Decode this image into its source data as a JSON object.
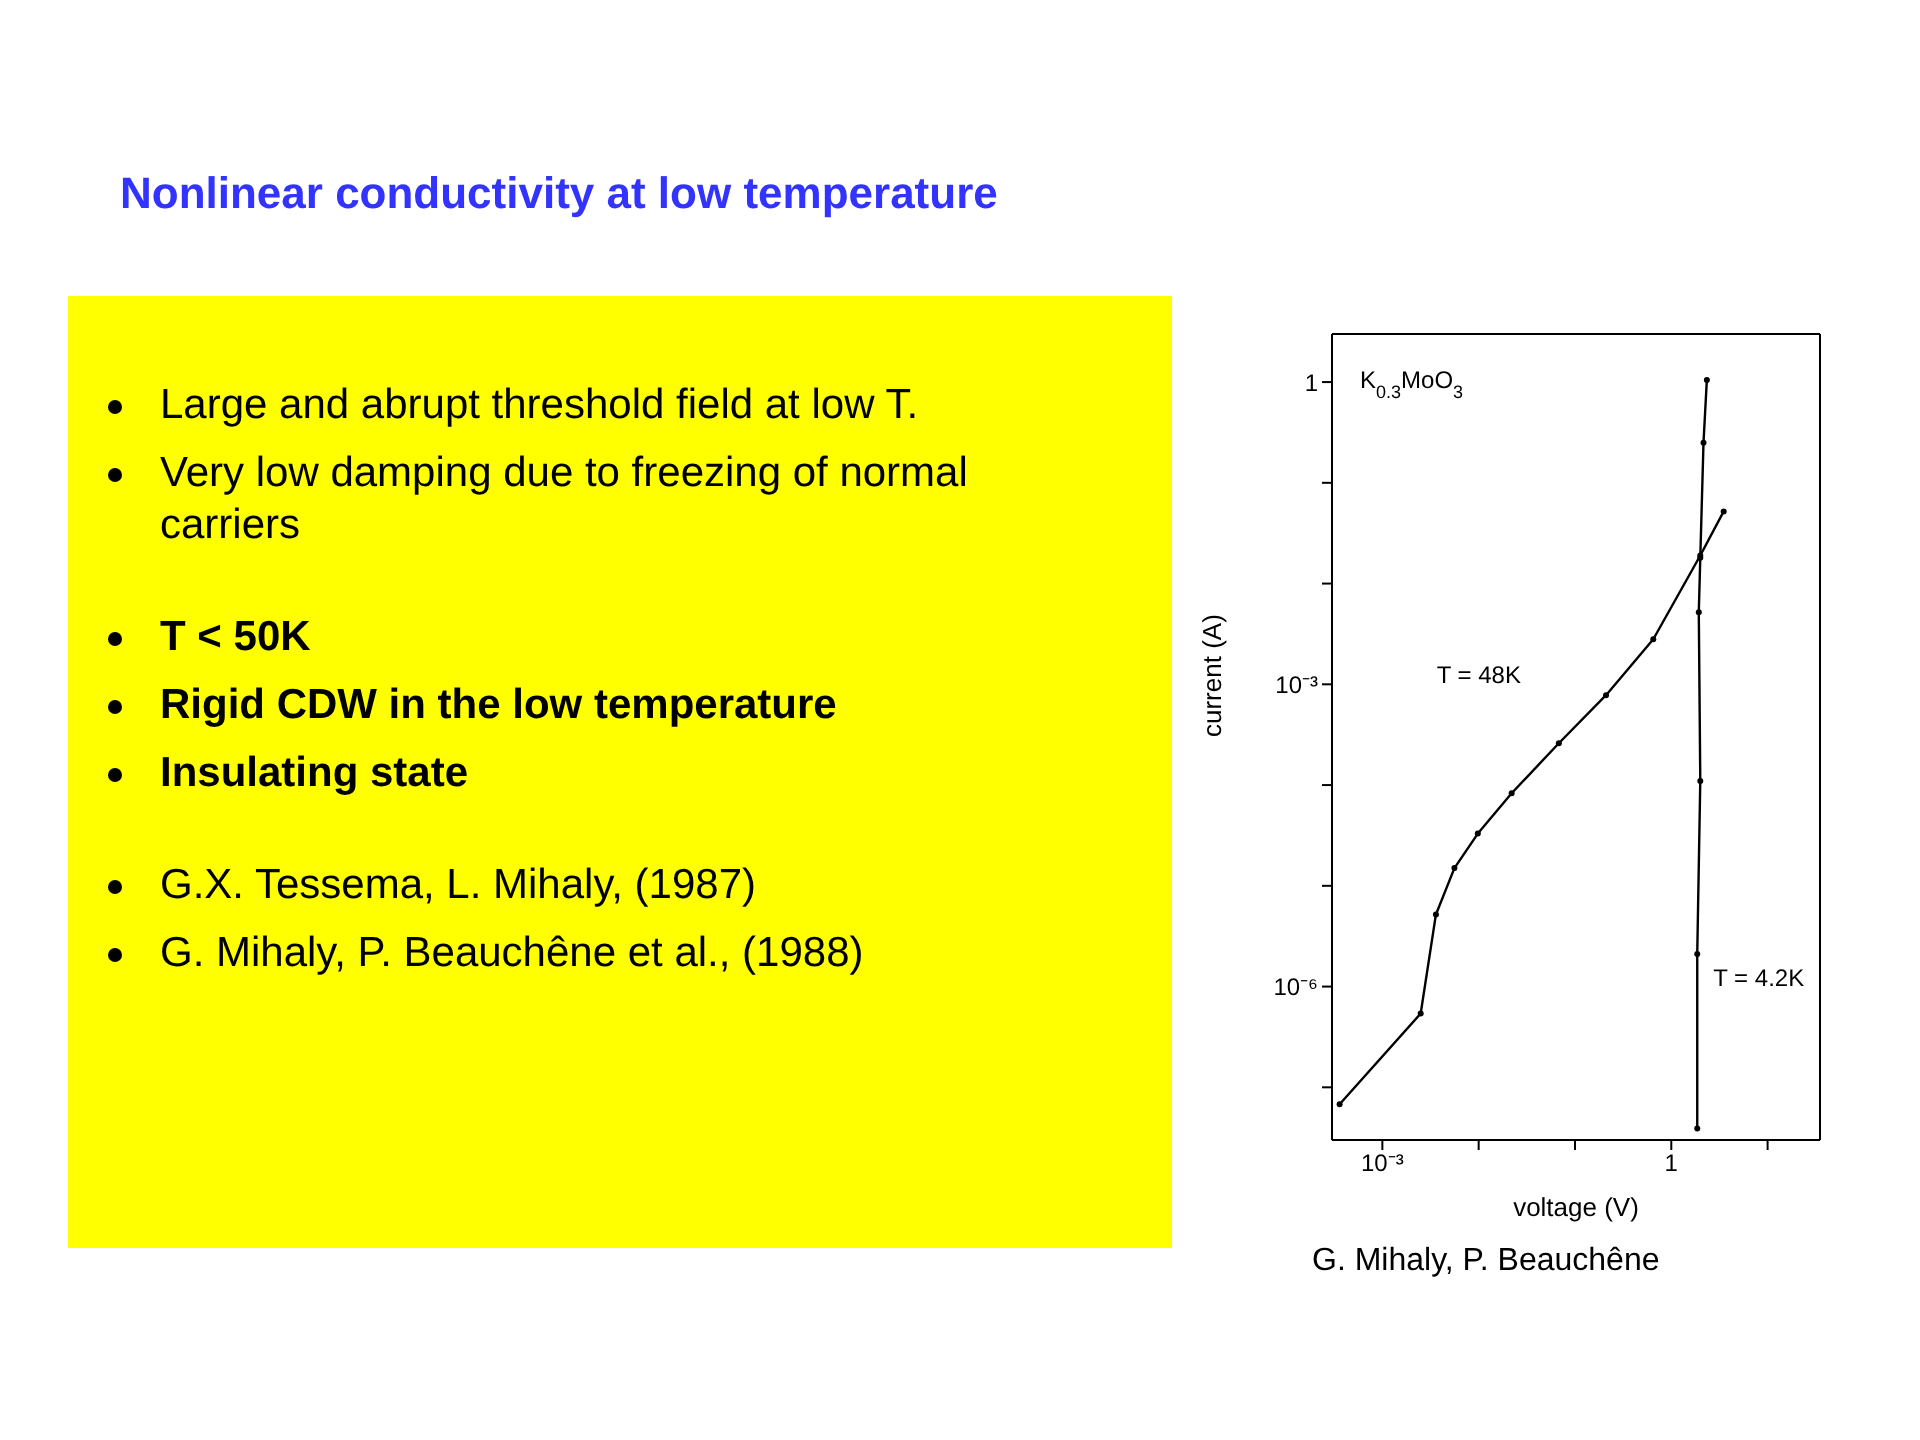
{
  "chart_data": {
    "type": "line",
    "title": "Nonlinear conductivity at low temperature",
    "annotations": [
      "Large and abrupt threshold field at low T.",
      "Very low damping due to freezing of normal carriers",
      "T < 50K",
      "Rigid CDW in the  low temperature",
      "Insulating state",
      "G.X. Tessema, L. Mihaly, (1987)",
      "G. Mihaly, P. Beauchêne et al., (1988)",
      "G. Mihaly, P. Beauchêne",
      "K$_{0.3}$MoO$_{3}$"
    ],
    "xlabel": "voltage (V)",
    "ylabel": "current (A)",
    "log": "xy",
    "grid": false,
    "legend": false,
    "marker": "circle",
    "line_style": "solid",
    "xlim": [
      0.0003,
      35
    ],
    "ylim": [
      3e-08,
      3
    ],
    "xticks": [
      {
        "value": 0.001,
        "label": "10⁻³"
      },
      {
        "value": 0.01,
        "label": null
      },
      {
        "value": 0.1,
        "label": null
      },
      1,
      {
        "value": 10,
        "label": null
      }
    ],
    "yticks": [
      {
        "value": 1e-07,
        "label": null
      },
      {
        "value": 1e-06,
        "label": "10⁻⁶"
      },
      {
        "value": 1e-05,
        "label": null
      },
      {
        "value": 0.0001,
        "label": null
      },
      {
        "value": 0.001,
        "label": "10⁻³"
      },
      {
        "value": 0.01,
        "label": null
      },
      {
        "value": 0.1,
        "label": null
      },
      1
    ],
    "series": [
      {
        "name": "T = 48K",
        "color": "#000000",
        "x": [
          0.00036,
          0.0025,
          0.0036,
          0.0056,
          0.0098,
          0.022,
          0.068,
          0.21,
          0.65,
          2.0,
          3.5
        ],
        "values": [
          6.8e-08,
          5.4e-07,
          5.2e-06,
          1.5e-05,
          3.3e-05,
          8.3e-05,
          0.00026,
          0.00078,
          0.0028,
          0.019,
          0.052
        ]
      },
      {
        "name": "T = 4.2K",
        "color": "#000000",
        "x": [
          1.86,
          1.86,
          2.0,
          1.93,
          2.0,
          2.16,
          2.34
        ],
        "values": [
          3.9e-08,
          2.1e-06,
          0.00011,
          0.0052,
          0.018,
          0.25,
          1.05
        ]
      }
    ]
  }
}
